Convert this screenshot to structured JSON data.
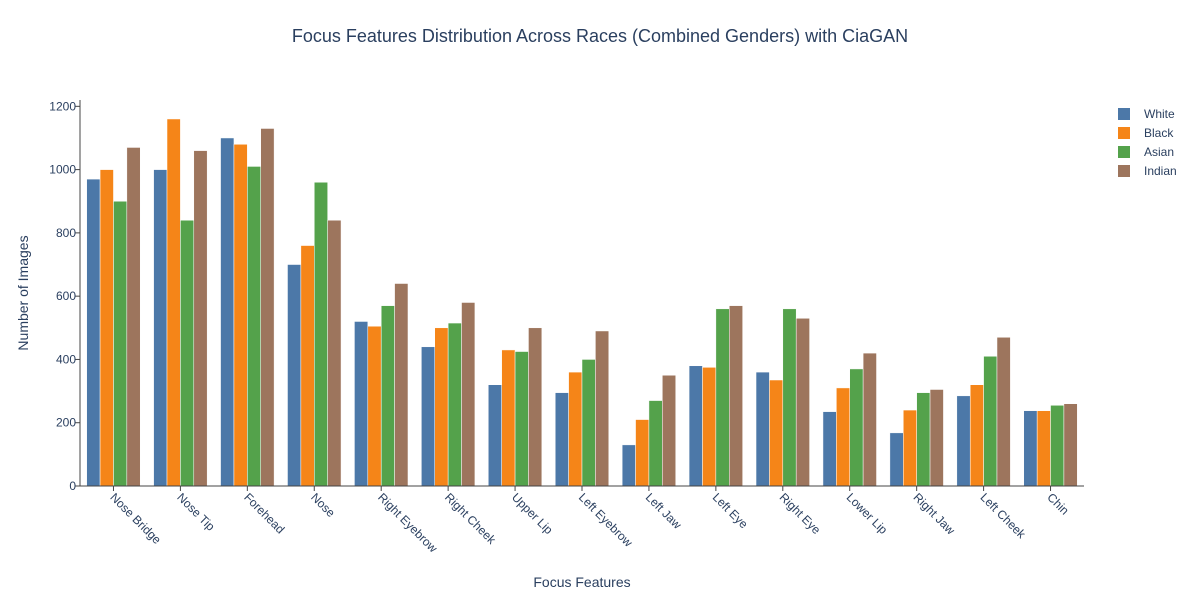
{
  "chart_data": {
    "type": "bar",
    "title": "Focus Features Distribution Across Races (Combined Genders) with CiaGAN",
    "xlabel": "Focus Features",
    "ylabel": "Number of Images",
    "ylim": [
      0,
      1220
    ],
    "yticks": [
      0,
      200,
      400,
      600,
      800,
      1000,
      1200
    ],
    "grid": false,
    "legend_position": "top-right",
    "categories": [
      "Nose Bridge",
      "Nose Tip",
      "Forehead",
      "Nose",
      "Right Eyebrow",
      "Right Cheek",
      "Upper Lip",
      "Left Eyebrow",
      "Left Jaw",
      "Left Eye",
      "Right Eye",
      "Lower Lip",
      "Right Jaw",
      "Left Cheek",
      "Chin"
    ],
    "series": [
      {
        "name": "White",
        "color": "#4c78a8",
        "values": [
          970,
          1000,
          1100,
          700,
          520,
          440,
          320,
          295,
          130,
          380,
          360,
          235,
          168,
          285,
          238
        ]
      },
      {
        "name": "Black",
        "color": "#f58518",
        "values": [
          1000,
          1160,
          1080,
          760,
          505,
          500,
          430,
          360,
          210,
          375,
          335,
          310,
          240,
          320,
          238
        ]
      },
      {
        "name": "Asian",
        "color": "#54a24b",
        "values": [
          900,
          840,
          1010,
          960,
          570,
          515,
          425,
          400,
          270,
          560,
          560,
          370,
          295,
          410,
          255
        ]
      },
      {
        "name": "Indian",
        "color": "#9d755d",
        "values": [
          1070,
          1060,
          1130,
          840,
          640,
          580,
          500,
          490,
          350,
          570,
          530,
          420,
          305,
          470,
          260
        ]
      }
    ]
  }
}
